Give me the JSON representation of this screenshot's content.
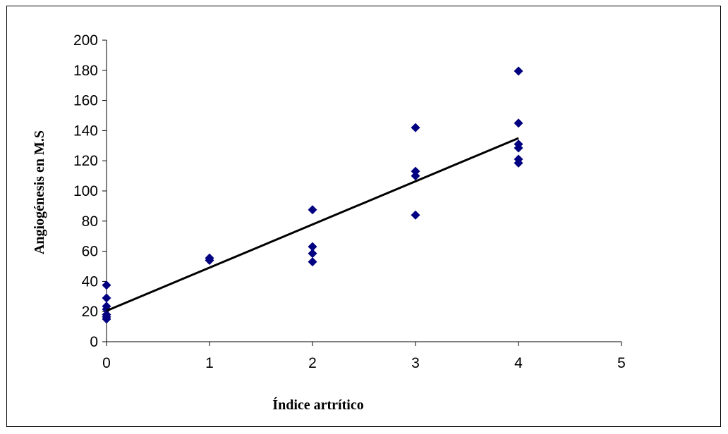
{
  "chart_data": {
    "type": "scatter",
    "xlabel": "Índice artrítico",
    "ylabel": "Angiogénesis en M.S",
    "xlim": [
      0,
      5
    ],
    "ylim": [
      0,
      200
    ],
    "x_ticks": [
      "0",
      "1",
      "2",
      "3",
      "4",
      "5"
    ],
    "y_ticks": [
      "0",
      "20",
      "40",
      "60",
      "80",
      "100",
      "120",
      "140",
      "160",
      "180",
      "200"
    ],
    "grid": false,
    "legend": "none",
    "marker": "diamond",
    "series": [
      {
        "points": [
          [
            0,
            37.5
          ],
          [
            0,
            29
          ],
          [
            0,
            23.5
          ],
          [
            0,
            21.5
          ],
          [
            0,
            18
          ],
          [
            0,
            16.5
          ],
          [
            0,
            15
          ],
          [
            1,
            55.5
          ],
          [
            1,
            54
          ],
          [
            2,
            87.5
          ],
          [
            2,
            63
          ],
          [
            2,
            58.5
          ],
          [
            2,
            53
          ],
          [
            3,
            142
          ],
          [
            3,
            113
          ],
          [
            3,
            110
          ],
          [
            3,
            84
          ],
          [
            4,
            179.5
          ],
          [
            4,
            145
          ],
          [
            4,
            131
          ],
          [
            4,
            128.5
          ],
          [
            4,
            121
          ],
          [
            4,
            118.5
          ]
        ],
        "color": "#000080"
      }
    ],
    "trendline": {
      "x": [
        0,
        4
      ],
      "y": [
        20.5,
        135
      ],
      "color": "#000000"
    }
  }
}
